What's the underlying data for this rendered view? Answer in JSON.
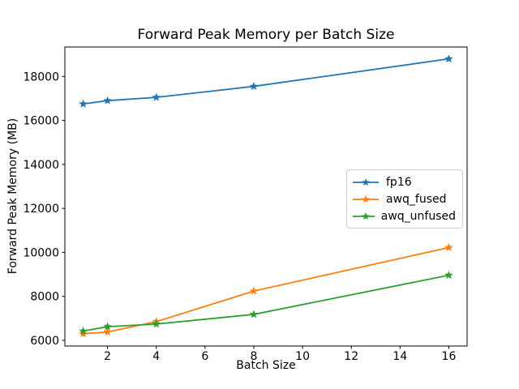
{
  "chart_data": {
    "type": "line",
    "title": "Forward Peak Memory per Batch Size",
    "xlabel": "Batch Size",
    "ylabel": "Forward Peak Memory (MB)",
    "x": [
      1,
      2,
      4,
      8,
      16
    ],
    "series": [
      {
        "name": "fp16",
        "color": "#1f77b4",
        "values": [
          16750,
          16900,
          17050,
          17550,
          18800
        ]
      },
      {
        "name": "awq_fused",
        "color": "#ff7f0e",
        "values": [
          6300,
          6380,
          6850,
          8240,
          10220
        ]
      },
      {
        "name": "awq_unfused",
        "color": "#2ca02c",
        "values": [
          6420,
          6620,
          6740,
          7180,
          8960
        ]
      }
    ],
    "xticks": [
      2,
      4,
      6,
      8,
      10,
      12,
      14,
      16
    ],
    "yticks": [
      6000,
      8000,
      10000,
      12000,
      14000,
      16000,
      18000
    ],
    "xlim": [
      0.25,
      16.75
    ],
    "ylim": [
      5740,
      19340
    ],
    "grid": false,
    "legend_position": "center-right",
    "marker": "star",
    "line_width": 1.8,
    "background": "#ffffff",
    "axis_color": "#000000"
  }
}
